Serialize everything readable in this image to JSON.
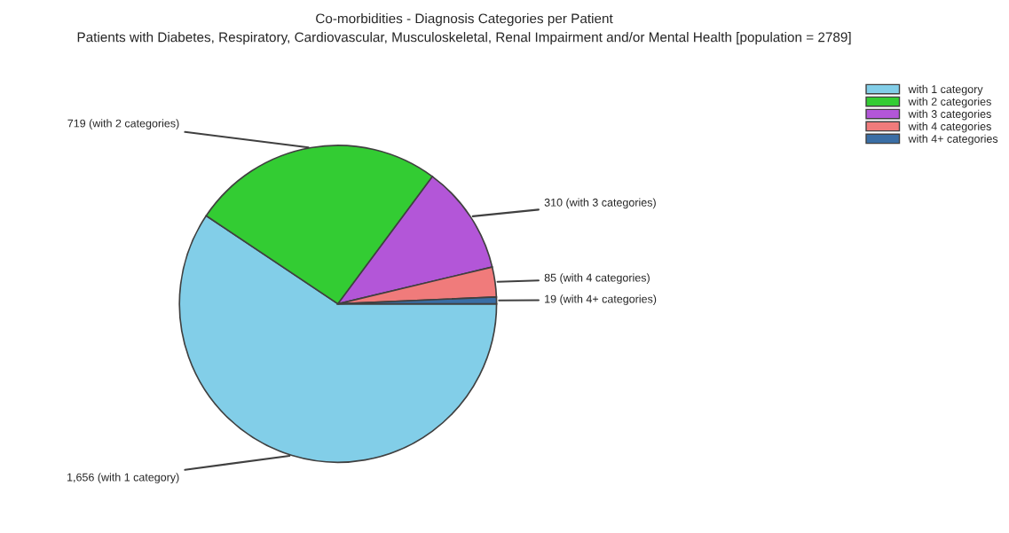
{
  "chart_data": {
    "type": "pie",
    "title": "Co-morbidities - Diagnosis Categories per Patient",
    "subtitle": "Patients with Diabetes, Respiratory, Cardiovascular, Musculoskeletal, Renal Impairment and/or Mental Health [population = 2789]",
    "categories": [
      "with 1 category",
      "with 2 categories",
      "with 3 categories",
      "with 4 categories",
      "with 4+ categories"
    ],
    "values": [
      1656,
      719,
      310,
      85,
      19
    ],
    "colors": [
      "#82cee8",
      "#33cc33",
      "#b356d8",
      "#f07b7b",
      "#3a6ea5"
    ],
    "value_labels": [
      "1,656 (with 1 category)",
      "719 (with 2 categories)",
      "310 (with 3 categories)",
      "85 (with 4 categories)",
      "19 (with 4+ categories)"
    ],
    "legend": "top right"
  }
}
